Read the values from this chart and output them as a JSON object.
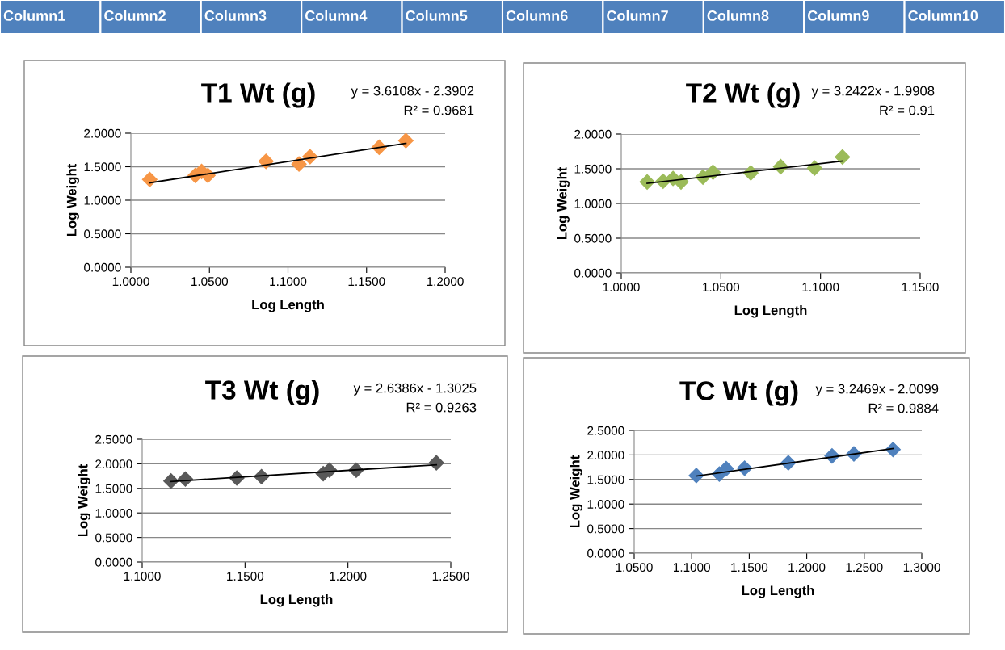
{
  "chart_data": [
    {
      "type": "other",
      "annotations": [
        "Column1",
        "Column2",
        "Column3",
        "Column4",
        "Column5",
        "Column6",
        "Column7",
        "Column8",
        "Column9",
        "Column10"
      ]
    },
    {
      "type": "scatter",
      "title": "T1 Wt (g)",
      "xlabel": "Log Length",
      "ylabel": "Log Weight",
      "marker": "diamond",
      "grid": "y",
      "legend": false,
      "annotations": [
        "y = 3.6108x - 2.3902",
        "R² = 0.9681"
      ],
      "xlim": [
        1.0,
        1.2
      ],
      "xticks": [
        {
          "value": 1.0,
          "label": "1.0000"
        },
        {
          "value": 1.05,
          "label": "1.0500"
        },
        {
          "value": 1.1,
          "label": "1.1000"
        },
        {
          "value": 1.15,
          "label": "1.1500"
        },
        {
          "value": 1.2,
          "label": "1.2000"
        }
      ],
      "ylim": [
        0,
        2
      ],
      "yticks": [
        {
          "value": 0,
          "label": "0.0000"
        },
        {
          "value": 0.5,
          "label": "0.5000"
        },
        {
          "value": 1.0,
          "label": "1.0000"
        },
        {
          "value": 1.5,
          "label": "1.5000"
        },
        {
          "value": 2.0,
          "label": "2.0000"
        }
      ],
      "series": [
        {
          "color": "#f79646",
          "x": [
            1.012,
            1.041,
            1.045,
            1.049,
            1.086,
            1.107,
            1.114,
            1.158,
            1.175
          ],
          "values": [
            1.31,
            1.37,
            1.43,
            1.37,
            1.58,
            1.54,
            1.65,
            1.79,
            1.89
          ]
        },
        {
          "type": "line",
          "marker": "none",
          "color": "#000000",
          "x": [
            1.012,
            1.175
          ],
          "values": [
            1.26,
            1.85
          ]
        }
      ]
    },
    {
      "type": "scatter",
      "title": "T2 Wt (g)",
      "xlabel": "Log Length",
      "ylabel": "Log Weight",
      "marker": "diamond",
      "grid": "y",
      "legend": false,
      "annotations": [
        "y = 3.2422x - 1.9908",
        "R² = 0.91"
      ],
      "xlim": [
        1.0,
        1.15
      ],
      "xticks": [
        {
          "value": 1.0,
          "label": "1.0000"
        },
        {
          "value": 1.05,
          "label": "1.0500"
        },
        {
          "value": 1.1,
          "label": "1.1000"
        },
        {
          "value": 1.15,
          "label": "1.1500"
        }
      ],
      "ylim": [
        0,
        2
      ],
      "yticks": [
        {
          "value": 0,
          "label": "0.0000"
        },
        {
          "value": 0.5,
          "label": "0.5000"
        },
        {
          "value": 1.0,
          "label": "1.0000"
        },
        {
          "value": 1.5,
          "label": "1.5000"
        },
        {
          "value": 2.0,
          "label": "2.0000"
        }
      ],
      "series": [
        {
          "color": "#9bbb59",
          "x": [
            1.013,
            1.021,
            1.026,
            1.03,
            1.041,
            1.046,
            1.065,
            1.08,
            1.097,
            1.111
          ],
          "values": [
            1.31,
            1.32,
            1.36,
            1.31,
            1.38,
            1.45,
            1.44,
            1.53,
            1.51,
            1.67
          ]
        },
        {
          "type": "line",
          "marker": "none",
          "color": "#000000",
          "x": [
            1.013,
            1.111
          ],
          "values": [
            1.29,
            1.61
          ]
        }
      ]
    },
    {
      "type": "scatter",
      "title": "T3 Wt (g)",
      "xlabel": "Log Length",
      "ylabel": "Log Weight",
      "marker": "diamond",
      "grid": "y",
      "legend": false,
      "annotations": [
        "y = 2.6386x - 1.3025",
        "R² = 0.9263"
      ],
      "xlim": [
        1.1,
        1.25
      ],
      "xticks": [
        {
          "value": 1.1,
          "label": "1.1000"
        },
        {
          "value": 1.15,
          "label": "1.1500"
        },
        {
          "value": 1.2,
          "label": "1.2000"
        },
        {
          "value": 1.25,
          "label": "1.2500"
        }
      ],
      "ylim": [
        0,
        2.5
      ],
      "yticks": [
        {
          "value": 0,
          "label": "0.0000"
        },
        {
          "value": 0.5,
          "label": "0.5000"
        },
        {
          "value": 1.0,
          "label": "1.0000"
        },
        {
          "value": 1.5,
          "label": "1.5000"
        },
        {
          "value": 2.0,
          "label": "2.0000"
        },
        {
          "value": 2.5,
          "label": "2.5000"
        }
      ],
      "series": [
        {
          "color": "#595959",
          "x": [
            1.114,
            1.121,
            1.146,
            1.158,
            1.188,
            1.191,
            1.204,
            1.243
          ],
          "values": [
            1.65,
            1.69,
            1.71,
            1.74,
            1.8,
            1.87,
            1.87,
            2.02
          ]
        },
        {
          "type": "line",
          "marker": "none",
          "color": "#000000",
          "x": [
            1.114,
            1.243
          ],
          "values": [
            1.64,
            1.98
          ]
        }
      ]
    },
    {
      "type": "scatter",
      "title": "TC Wt (g)",
      "xlabel": "Log Length",
      "ylabel": "Log Weight",
      "marker": "diamond",
      "grid": "y",
      "legend": false,
      "annotations": [
        "y = 3.2469x - 2.0099",
        "R² = 0.9884"
      ],
      "xlim": [
        1.05,
        1.3
      ],
      "xticks": [
        {
          "value": 1.05,
          "label": "1.0500"
        },
        {
          "value": 1.1,
          "label": "1.1000"
        },
        {
          "value": 1.15,
          "label": "1.1500"
        },
        {
          "value": 1.2,
          "label": "1.2000"
        },
        {
          "value": 1.25,
          "label": "1.2500"
        },
        {
          "value": 1.3,
          "label": "1.3000"
        }
      ],
      "ylim": [
        0,
        2.5
      ],
      "yticks": [
        {
          "value": 0,
          "label": "0.0000"
        },
        {
          "value": 0.5,
          "label": "0.5000"
        },
        {
          "value": 1.0,
          "label": "1.0000"
        },
        {
          "value": 1.5,
          "label": "1.5000"
        },
        {
          "value": 2.0,
          "label": "2.0000"
        },
        {
          "value": 2.5,
          "label": "2.5000"
        }
      ],
      "series": [
        {
          "color": "#4f81bd",
          "x": [
            1.104,
            1.124,
            1.13,
            1.146,
            1.184,
            1.222,
            1.241,
            1.275
          ],
          "values": [
            1.58,
            1.61,
            1.72,
            1.73,
            1.84,
            1.98,
            2.02,
            2.11
          ]
        },
        {
          "type": "line",
          "marker": "none",
          "color": "#000000",
          "x": [
            1.104,
            1.275
          ],
          "values": [
            1.57,
            2.13
          ]
        }
      ]
    }
  ]
}
